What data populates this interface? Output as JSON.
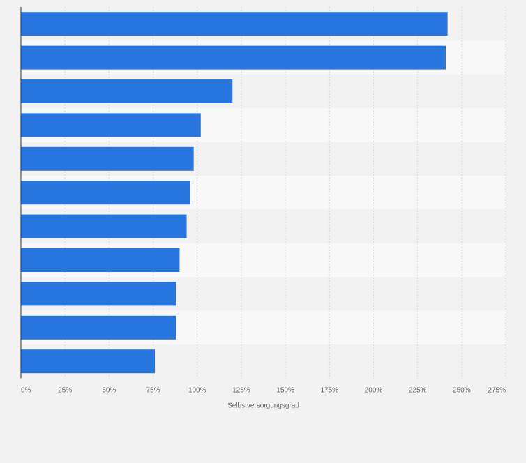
{
  "chart_data": {
    "type": "bar",
    "orientation": "horizontal",
    "title": "",
    "xlabel": "Selbstversorgungsgrad",
    "ylabel": "",
    "xlim": [
      0,
      275
    ],
    "x_ticks": [
      "0%",
      "25%",
      "50%",
      "75%",
      "100%",
      "125%",
      "150%",
      "175%",
      "200%",
      "225%",
      "250%",
      "275%"
    ],
    "categories": [
      "",
      "",
      "",
      "",
      "",
      "",
      "",
      "",
      "",
      "",
      ""
    ],
    "values": [
      242,
      241,
      120,
      102,
      98,
      96,
      94,
      90,
      88,
      88,
      76
    ],
    "value_unit": "%",
    "grid": true,
    "legend": "none",
    "bar_color": "#2775de",
    "band_colors": [
      "#f2f2f2",
      "#f8f8f8"
    ],
    "background": "#f2f2f2"
  }
}
